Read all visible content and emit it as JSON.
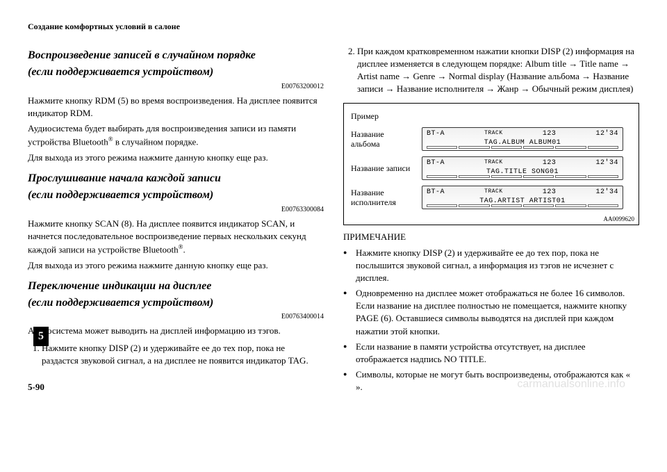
{
  "header": {
    "running": "Создание комфортных условий в салоне"
  },
  "chapterTab": "5",
  "left": {
    "s1": {
      "title1": "Воспроизведение записей в случайном порядке",
      "title2": "(если поддерживается устройством)",
      "code": "E00763200012",
      "p1": "Нажмите кнопку RDM (5) во время воспроизведения. На дисплее появится индикатор RDM.",
      "p2a": "Аудиосистема будет выбирать для воспроизведения записи из памяти устройства Bluetooth",
      "p2b": " в случайном порядке.",
      "p3": "Для выхода из этого режима нажмите данную кнопку еще раз."
    },
    "s2": {
      "title1": "Прослушивание начала каждой записи",
      "title2": "(если поддерживается устройством)",
      "code": "E00763300084",
      "p1a": "Нажмите кнопку SCAN (8). На дисплее появится индикатор SCAN, и начнется последовательное воспроизведение первых нескольких секунд каждой записи на устройстве Bluetooth",
      "p1b": ".",
      "p2": "Для выхода из этого режима нажмите данную кнопку еще раз."
    },
    "s3": {
      "title1": "Переключение индикации на дисплее",
      "title2": "(если поддерживается устройством)",
      "code": "E00763400014",
      "p1": "Аудиосистема может выводить на дисплей информацию из тэгов.",
      "li1": "Нажмите кнопку DISP (2) и удерживайте ее до тех пор, пока не раздастся звуковой сигнал, а на дисплее не появится индикатор TAG."
    }
  },
  "right": {
    "li2": "При каждом кратковременном нажатии кнопки DISP (2) информация на дисплее изменяется в следующем порядке: Album title → Title name → Artist name → Genre → Normal display (Название альбома → Название записи → Название исполнителя → Жанр → Обычный режим дисплея)",
    "example": {
      "label": "Пример",
      "figCode": "AA0099620",
      "rows": [
        {
          "label": "Название альбома",
          "left": "BT-A",
          "mid": "TRACK",
          "num": "123",
          "time": "12'34",
          "line2": "TAG.ALBUM  ALBUM01"
        },
        {
          "label": "Название записи",
          "left": "BT-A",
          "mid": "TRACK",
          "num": "123",
          "time": "12'34",
          "line2": "TAG.TITLE  SONG01"
        },
        {
          "label": "Название исполнителя",
          "left": "BT-A",
          "mid": "TRACK",
          "num": "123",
          "time": "12'34",
          "line2": "TAG.ARTIST ARTIST01"
        }
      ]
    },
    "noteHead": "ПРИМЕЧАНИЕ",
    "notes": [
      "Нажмите кнопку DISP (2) и удерживайте ее до тех пор, пока не послышится звуковой сигнал, а информация из тэгов не исчезнет с дисплея.",
      "Одновременно на дисплее может отображаться не более 16 символов. Если название на дисплее полностью не помещается, нажмите кнопку PAGE (6). Оставшиеся символы выводятся на дисплей при каждом нажатии этой кнопки.",
      "Если название в памяти устройства отсутствует, на дисплее отображается надпись NO TITLE.",
      "Символы, которые не могут быть воспроизведены, отображаются как «  »."
    ]
  },
  "pageNum": "5-90",
  "watermark": "carmanualsonline.info"
}
